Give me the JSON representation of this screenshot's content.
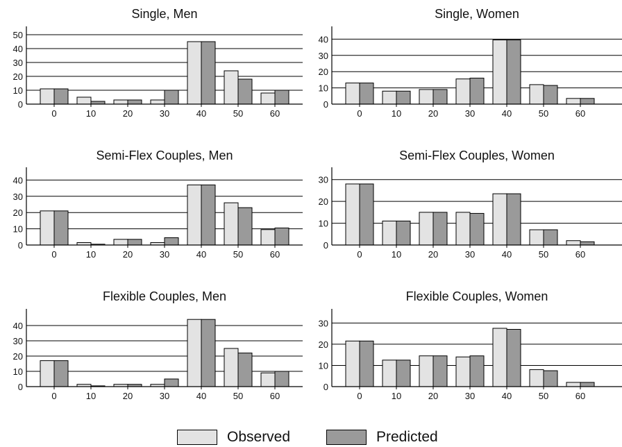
{
  "colors": {
    "observed": "#e3e3e3",
    "predicted": "#9a9a9a",
    "grid": "#000000"
  },
  "legend": {
    "observed_label": "Observed",
    "predicted_label": "Predicted"
  },
  "chart_data": [
    {
      "type": "bar",
      "title": "Single, Men",
      "categories": [
        "0",
        "10",
        "20",
        "30",
        "40",
        "50",
        "60"
      ],
      "ylim": [
        0,
        55
      ],
      "yticks": [
        0,
        10,
        20,
        30,
        40,
        50
      ],
      "grid": true,
      "series": [
        {
          "name": "Observed",
          "values": [
            11,
            5,
            3,
            3,
            45,
            24,
            8
          ]
        },
        {
          "name": "Predicted",
          "values": [
            11,
            2,
            3,
            10,
            45,
            18,
            10
          ]
        }
      ]
    },
    {
      "type": "bar",
      "title": "Single, Women",
      "categories": [
        "0",
        "10",
        "20",
        "30",
        "40",
        "50",
        "60"
      ],
      "ylim": [
        0,
        47
      ],
      "yticks": [
        0,
        10,
        20,
        30,
        40
      ],
      "grid": true,
      "series": [
        {
          "name": "Observed",
          "values": [
            13,
            8,
            9,
            15.5,
            39.5,
            12,
            3.5
          ]
        },
        {
          "name": "Predicted",
          "values": [
            13,
            8,
            9,
            16,
            39.5,
            11.5,
            3.5
          ]
        }
      ]
    },
    {
      "type": "bar",
      "title": "Semi-Flex Couples, Men",
      "categories": [
        "0",
        "10",
        "20",
        "30",
        "40",
        "50",
        "60"
      ],
      "ylim": [
        0,
        47
      ],
      "yticks": [
        0,
        10,
        20,
        30,
        40
      ],
      "grid": true,
      "series": [
        {
          "name": "Observed",
          "values": [
            21,
            1.5,
            3.5,
            1.5,
            37,
            26,
            9.5
          ]
        },
        {
          "name": "Predicted",
          "values": [
            21,
            0.5,
            3.5,
            4.5,
            37,
            23,
            10.5
          ]
        }
      ]
    },
    {
      "type": "bar",
      "title": "Semi-Flex Couples, Women",
      "categories": [
        "0",
        "10",
        "20",
        "30",
        "40",
        "50",
        "60"
      ],
      "ylim": [
        0,
        35
      ],
      "yticks": [
        0,
        10,
        20,
        30
      ],
      "grid": true,
      "series": [
        {
          "name": "Observed",
          "values": [
            28,
            11,
            15,
            15,
            23.5,
            7,
            2
          ]
        },
        {
          "name": "Predicted",
          "values": [
            28,
            11,
            15,
            14.5,
            23.5,
            7,
            1.5
          ]
        }
      ]
    },
    {
      "type": "bar",
      "title": "Flexible Couples, Men",
      "categories": [
        "0",
        "10",
        "20",
        "30",
        "40",
        "50",
        "60"
      ],
      "ylim": [
        0,
        50
      ],
      "yticks": [
        0,
        10,
        20,
        30,
        40
      ],
      "grid": true,
      "series": [
        {
          "name": "Observed",
          "values": [
            17,
            1.5,
            1.5,
            1.5,
            44,
            25,
            9
          ]
        },
        {
          "name": "Predicted",
          "values": [
            17,
            0.5,
            1.5,
            5,
            44,
            22,
            10
          ]
        }
      ]
    },
    {
      "type": "bar",
      "title": "Flexible Couples, Women",
      "categories": [
        "0",
        "10",
        "20",
        "30",
        "40",
        "50",
        "60"
      ],
      "ylim": [
        0,
        36
      ],
      "yticks": [
        0,
        10,
        20,
        30
      ],
      "grid": true,
      "series": [
        {
          "name": "Observed",
          "values": [
            21.5,
            12.5,
            14.5,
            14,
            27.5,
            8,
            2
          ]
        },
        {
          "name": "Predicted",
          "values": [
            21.5,
            12.5,
            14.5,
            14.5,
            27,
            7.5,
            2
          ]
        }
      ]
    }
  ]
}
